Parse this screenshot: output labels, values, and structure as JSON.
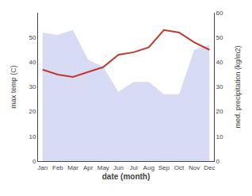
{
  "chart_data": {
    "type": "line",
    "categories": [
      "Jan",
      "Feb",
      "Mar",
      "Apr",
      "May",
      "Jun",
      "Jul",
      "Aug",
      "Sep",
      "Oct",
      "Nov",
      "Dec"
    ],
    "series": [
      {
        "type": "area",
        "color": "#b0b8e8",
        "axis": "y2",
        "values": [
          52,
          51,
          53,
          41,
          38,
          28,
          32,
          32,
          27,
          27,
          45,
          47
        ]
      },
      {
        "type": "line",
        "color": "#c0392b",
        "values": [
          37,
          35,
          34,
          36,
          38,
          43,
          44,
          46,
          53,
          52,
          48,
          45
        ]
      }
    ],
    "xlabel": "date (month)",
    "ylabel": "max temp (C)",
    "y2label": "med. precipitation (kg/m2)",
    "ylim": [
      0,
      60
    ],
    "yticks": [
      0,
      10,
      20,
      30,
      40,
      50
    ],
    "y2lim": [
      0,
      60
    ],
    "y2ticks": [
      0,
      10,
      20,
      30,
      40,
      50,
      60
    ],
    "grid": false
  }
}
